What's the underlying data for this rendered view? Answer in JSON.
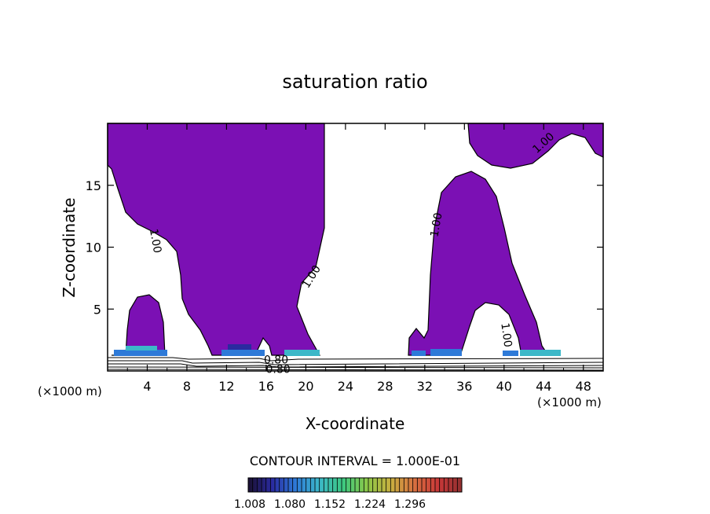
{
  "chart_data": {
    "type": "contour",
    "title": "saturation ratio",
    "xlabel": "X-coordinate",
    "ylabel": "Z-coordinate",
    "x_unit": "(×1000 m)",
    "z_unit": "(×1000 m)",
    "xlim": [
      0,
      50
    ],
    "ylim": [
      0,
      20
    ],
    "x_ticks": [
      4,
      8,
      12,
      16,
      20,
      24,
      28,
      32,
      36,
      40,
      44,
      48
    ],
    "y_ticks": [
      5,
      10,
      15
    ],
    "contour_labels": [
      {
        "text": "1.00",
        "x": 4.8,
        "z": 10.5,
        "rotation": 80
      },
      {
        "text": "1.00",
        "x": 20.6,
        "z": 7.6,
        "rotation": -58
      },
      {
        "text": "1.00",
        "x": 33.2,
        "z": 11.8,
        "rotation": -80
      },
      {
        "text": "1.00",
        "x": 44.0,
        "z": 18.4,
        "rotation": -42
      },
      {
        "text": "1.00",
        "x": 40.2,
        "z": 2.9,
        "rotation": 82
      },
      {
        "text": "0.80",
        "x": 17.0,
        "z": 0.85,
        "rotation": 0
      },
      {
        "text": "0.80",
        "x": 17.2,
        "z": 0.1,
        "rotation": 0
      }
    ],
    "supersaturated_regions": [
      {
        "name": "left-plume",
        "z_max": 6.3
      },
      {
        "name": "central-plume",
        "z_max": 20
      },
      {
        "name": "right-plume",
        "z_max": 15.8
      },
      {
        "name": "upper-right-cap",
        "z_min": 16.7
      }
    ],
    "contour_interval_text": "CONTOUR INTERVAL = 1.000E-01",
    "colorbar": {
      "ticks": [
        "1.008",
        "1.080",
        "1.152",
        "1.224",
        "1.296"
      ],
      "colors": [
        "#1a1030",
        "#2a2aa0",
        "#2e7ad8",
        "#3cb8c8",
        "#3cc880",
        "#8cc848",
        "#c8b040",
        "#d87040",
        "#c83838",
        "#903030"
      ]
    },
    "fill_color": "#7b10b4"
  }
}
